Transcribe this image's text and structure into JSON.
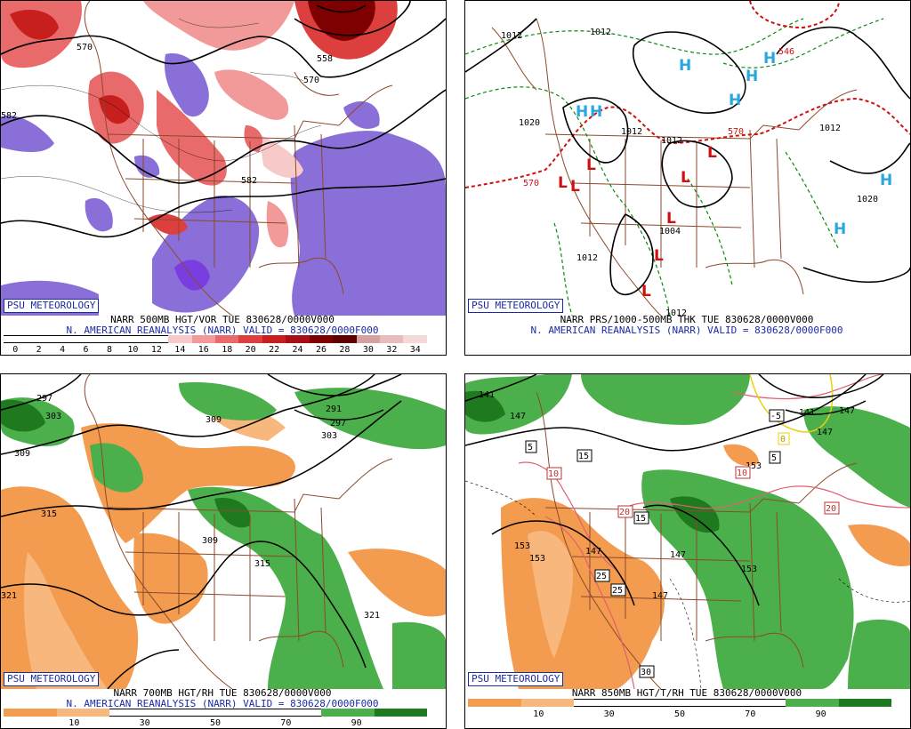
{
  "panels": [
    {
      "id": "tl",
      "badge": "PSU METEOROLOGY",
      "caption_line1": "NARR 500MB HGT/VOR TUE 830628/0000V000",
      "caption_line2": "N. AMERICAN REANALYSIS (NARR) VALID = 830628/0000F000",
      "colorbar": [
        "#ffffff",
        "#ffffff",
        "#ffffff",
        "#ffffff",
        "#ffffff",
        "#ffffff",
        "#ffffff",
        "#f7c9c9",
        "#f29a9a",
        "#e96a6a",
        "#dd3f3f",
        "#c71e1e",
        "#a50f15",
        "#7f0000",
        "#5e0000",
        "#d4a0a0",
        "#e8bcbc",
        "#f5d8d8"
      ],
      "ticks": [
        "0",
        "2",
        "4",
        "6",
        "8",
        "10",
        "12",
        "14",
        "16",
        "18",
        "20",
        "22",
        "24",
        "26",
        "28",
        "30",
        "32",
        "34"
      ],
      "contour_labels": [
        "570",
        "558",
        "570",
        "582",
        "582"
      ]
    },
    {
      "id": "tr",
      "badge": "PSU METEOROLOGY",
      "caption_line1": "NARR PRS/1000-500MB THK TUE 830628/0000V000",
      "caption_line2": "N. AMERICAN REANALYSIS (NARR) VALID = 830628/0000F000",
      "isobar_labels": [
        "1012",
        "1012",
        "1012",
        "1012",
        "1012",
        "1012",
        "1004",
        "1012",
        "1020",
        "1020"
      ],
      "thickness_labels": [
        "570",
        "546",
        "570"
      ],
      "highs": [
        "H",
        "H",
        "H",
        "H",
        "H",
        "H",
        "H",
        "H"
      ],
      "lows": [
        "L",
        "L",
        "L",
        "L",
        "L",
        "L",
        "L",
        "L"
      ]
    },
    {
      "id": "bl",
      "badge": "PSU METEOROLOGY",
      "caption_line1": "NARR 700MB HGT/RH TUE 830628/0000V000",
      "caption_line2": "N. AMERICAN REANALYSIS (NARR) VALID = 830628/0000F000",
      "colorbar": [
        "#f39b4f",
        "#f8b77c",
        "#ffffff",
        "#ffffff",
        "#ffffff",
        "#ffffff",
        "#4bb04b",
        "#1f7a1f"
      ],
      "ticks": [
        "10",
        "30",
        "50",
        "70",
        "90"
      ],
      "contour_labels": [
        "297",
        "303",
        "309",
        "291",
        "297",
        "303",
        "309",
        "315",
        "309",
        "315",
        "321",
        "321"
      ]
    },
    {
      "id": "br",
      "badge": "PSU METEOROLOGY",
      "caption_line1": "NARR 850MB HGT/T/RH TUE 830628/0000V000",
      "caption_line2": "",
      "colorbar": [
        "#f39b4f",
        "#f8b77c",
        "#ffffff",
        "#ffffff",
        "#ffffff",
        "#ffffff",
        "#4bb04b",
        "#1f7a1f"
      ],
      "ticks": [
        "10",
        "30",
        "50",
        "70",
        "90"
      ],
      "contour_labels": [
        "141",
        "147",
        "141",
        "147",
        "153",
        "147",
        "153",
        "147",
        "153",
        "147",
        "153",
        "147"
      ],
      "temp_labels": [
        "5",
        "15",
        "10",
        "15",
        "20",
        "25",
        "25",
        "30",
        "5",
        "10",
        "20",
        "0",
        "-5",
        "20"
      ]
    }
  ]
}
